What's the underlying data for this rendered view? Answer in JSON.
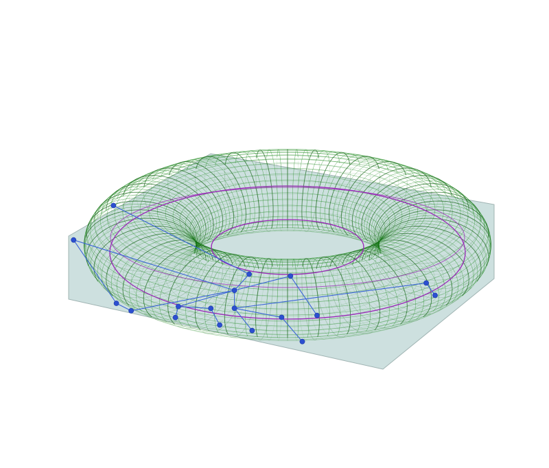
{
  "colors": {
    "background": "#ffffff",
    "plane_fill": "#cde0df",
    "plane_edge": "#9fb3b2",
    "torus_mesh": "#1f8a1f",
    "torus_meridian": "#0b5e0b",
    "torus_outline": "#9a28b8",
    "tree_edge": "#3a64d8",
    "tree_node": "#2c4fd0"
  },
  "diagram": {
    "objects": [
      "plane",
      "torus-wireframe",
      "tree-graph"
    ],
    "torus": {
      "major_radius": 1.0,
      "minor_radius": 0.38,
      "ring_lines": 120,
      "meridian_lines": 40
    },
    "tree": {
      "nodes": [
        {
          "id": 0,
          "x": -1.45,
          "y": -0.55,
          "z": 0.38
        },
        {
          "id": 1,
          "x": -1.18,
          "y": 0.28,
          "z": 0.26
        },
        {
          "id": 2,
          "x": -1.16,
          "y": -1.4,
          "z": 0.2
        },
        {
          "id": 3,
          "x": -1.06,
          "y": -1.3,
          "z": 0.06
        },
        {
          "id": 4,
          "x": -0.74,
          "y": -1.12,
          "z": 0.0
        },
        {
          "id": 5,
          "x": -0.76,
          "y": -1.22,
          "z": -0.06
        },
        {
          "id": 6,
          "x": -0.52,
          "y": -1.02,
          "z": -0.08
        },
        {
          "id": 7,
          "x": -0.46,
          "y": -1.12,
          "z": -0.2
        },
        {
          "id": 8,
          "x": -0.36,
          "y": -0.86,
          "z": 0.02
        },
        {
          "id": 9,
          "x": -0.36,
          "y": -0.95,
          "z": -0.12
        },
        {
          "id": 10,
          "x": -0.26,
          "y": -0.7,
          "z": 0.1
        },
        {
          "id": 11,
          "x": -0.24,
          "y": -1.12,
          "z": -0.26
        },
        {
          "id": 12,
          "x": 0.02,
          "y": -0.6,
          "z": 0.02
        },
        {
          "id": 13,
          "x": -0.04,
          "y": -0.98,
          "z": -0.2
        },
        {
          "id": 14,
          "x": 0.2,
          "y": -0.98,
          "z": -0.18
        },
        {
          "id": 15,
          "x": 0.1,
          "y": -1.32,
          "z": -0.26
        },
        {
          "id": 16,
          "x": 0.94,
          "y": -1.03,
          "z": 0.2
        },
        {
          "id": 17,
          "x": 1.0,
          "y": -1.12,
          "z": 0.12
        }
      ],
      "edges": [
        [
          0,
          8
        ],
        [
          1,
          10
        ],
        [
          0,
          2
        ],
        [
          2,
          3
        ],
        [
          3,
          8
        ],
        [
          4,
          8
        ],
        [
          4,
          5
        ],
        [
          4,
          6
        ],
        [
          6,
          7
        ],
        [
          8,
          9
        ],
        [
          8,
          10
        ],
        [
          9,
          11
        ],
        [
          8,
          12
        ],
        [
          12,
          14
        ],
        [
          9,
          13
        ],
        [
          13,
          15
        ],
        [
          9,
          16
        ],
        [
          16,
          17
        ]
      ]
    }
  }
}
